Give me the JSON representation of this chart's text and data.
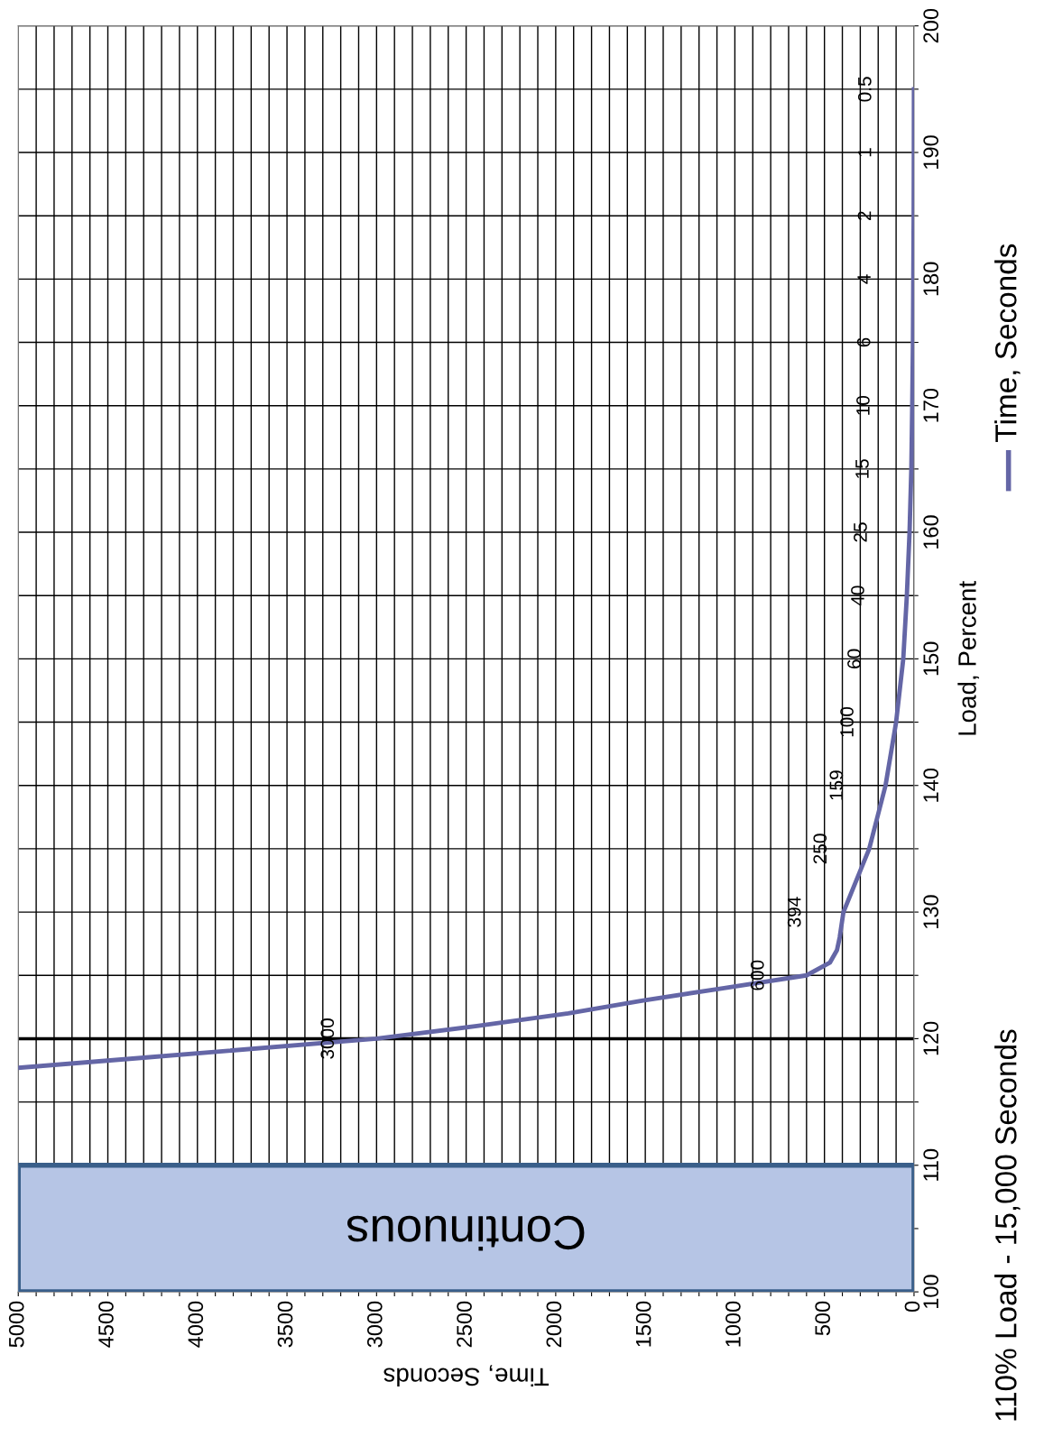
{
  "chart_data": {
    "type": "line",
    "xlabel": "Time, Seconds",
    "ylabel": "Load, Percent",
    "series": [
      {
        "name": "Time, Seconds",
        "color": "#6466a6",
        "x": [
          5000,
          4300,
          3000,
          2440,
          1930,
          1520,
          1060,
          600,
          470,
          430,
          415,
          394,
          250,
          159,
          100,
          60,
          40,
          25,
          15,
          10,
          6,
          4,
          2,
          1,
          0.5
        ],
        "values": [
          117.7,
          118.5,
          120,
          121,
          122,
          123,
          124,
          125,
          126,
          127,
          128,
          130,
          135,
          140,
          145,
          150,
          155,
          160,
          165,
          170,
          175,
          180,
          185,
          190,
          195
        ]
      }
    ],
    "xlim": [
      5000,
      0
    ],
    "xticks": [
      5000,
      {
        "value": 4900,
        "label": null
      },
      {
        "value": 4800,
        "label": null
      },
      {
        "value": 4700,
        "label": null
      },
      {
        "value": 4600,
        "label": null
      },
      4500,
      {
        "value": 4400,
        "label": null
      },
      {
        "value": 4300,
        "label": null
      },
      {
        "value": 4200,
        "label": null
      },
      {
        "value": 4100,
        "label": null
      },
      4000,
      {
        "value": 3900,
        "label": null
      },
      {
        "value": 3800,
        "label": null
      },
      {
        "value": 3700,
        "label": null
      },
      {
        "value": 3600,
        "label": null
      },
      3500,
      {
        "value": 3400,
        "label": null
      },
      {
        "value": 3300,
        "label": null
      },
      {
        "value": 3200,
        "label": null
      },
      {
        "value": 3100,
        "label": null
      },
      3000,
      {
        "value": 2900,
        "label": null
      },
      {
        "value": 2800,
        "label": null
      },
      {
        "value": 2700,
        "label": null
      },
      {
        "value": 2600,
        "label": null
      },
      2500,
      {
        "value": 2400,
        "label": null
      },
      {
        "value": 2300,
        "label": null
      },
      {
        "value": 2200,
        "label": null
      },
      {
        "value": 2100,
        "label": null
      },
      2000,
      {
        "value": 1900,
        "label": null
      },
      {
        "value": 1800,
        "label": null
      },
      {
        "value": 1700,
        "label": null
      },
      {
        "value": 1600,
        "label": null
      },
      1500,
      {
        "value": 1400,
        "label": null
      },
      {
        "value": 1300,
        "label": null
      },
      {
        "value": 1200,
        "label": null
      },
      {
        "value": 1100,
        "label": null
      },
      1000,
      {
        "value": 900,
        "label": null
      },
      {
        "value": 800,
        "label": null
      },
      {
        "value": 700,
        "label": null
      },
      {
        "value": 600,
        "label": null
      },
      500,
      {
        "value": 400,
        "label": null
      },
      {
        "value": 300,
        "label": null
      },
      {
        "value": 200,
        "label": null
      },
      {
        "value": 100,
        "label": null
      },
      0
    ],
    "ylim": [
      100,
      200
    ],
    "yticks": [
      100,
      {
        "value": 105,
        "label": null
      },
      110,
      {
        "value": 115,
        "label": null
      },
      120,
      {
        "value": 125,
        "label": null
      },
      130,
      {
        "value": 135,
        "label": null
      },
      140,
      {
        "value": 145,
        "label": null
      },
      150,
      {
        "value": 155,
        "label": null
      },
      160,
      {
        "value": 165,
        "label": null
      },
      170,
      {
        "value": 175,
        "label": null
      },
      180,
      {
        "value": 185,
        "label": null
      },
      190,
      {
        "value": 195,
        "label": null
      },
      200
    ],
    "grid": true,
    "bands": [
      {
        "axis": "y",
        "from": 100,
        "to": 110,
        "label": "Continuous",
        "color": "#b6c5e5"
      }
    ],
    "ref_lines": [
      {
        "axis": "y",
        "value": 120,
        "label": null,
        "color": "#000000"
      }
    ],
    "annotations": [
      {
        "text": "3000",
        "x": 3000,
        "y": 120
      },
      {
        "text": "600",
        "x": 600,
        "y": 125
      },
      {
        "text": "394",
        "x": 394,
        "y": 130
      },
      {
        "text": "250",
        "x": 250,
        "y": 135
      },
      {
        "text": "159",
        "x": 159,
        "y": 140
      },
      {
        "text": "100",
        "x": 100,
        "y": 145
      },
      {
        "text": "60",
        "x": 60,
        "y": 150
      },
      {
        "text": "40",
        "x": 40,
        "y": 155
      },
      {
        "text": "25",
        "x": 25,
        "y": 160
      },
      {
        "text": "15",
        "x": 15,
        "y": 165
      },
      {
        "text": "10",
        "x": 10,
        "y": 170
      },
      {
        "text": "6",
        "x": 6,
        "y": 175
      },
      {
        "text": "4",
        "x": 4,
        "y": 180
      },
      {
        "text": "2",
        "x": 2,
        "y": 185
      },
      {
        "text": "1",
        "x": 1,
        "y": 190
      },
      {
        "text": "0.5",
        "x": 0.5,
        "y": 195
      },
      "110% Load - 15,000 Seconds"
    ],
    "legend": "right",
    "marker": "none",
    "line_style": "solid"
  }
}
